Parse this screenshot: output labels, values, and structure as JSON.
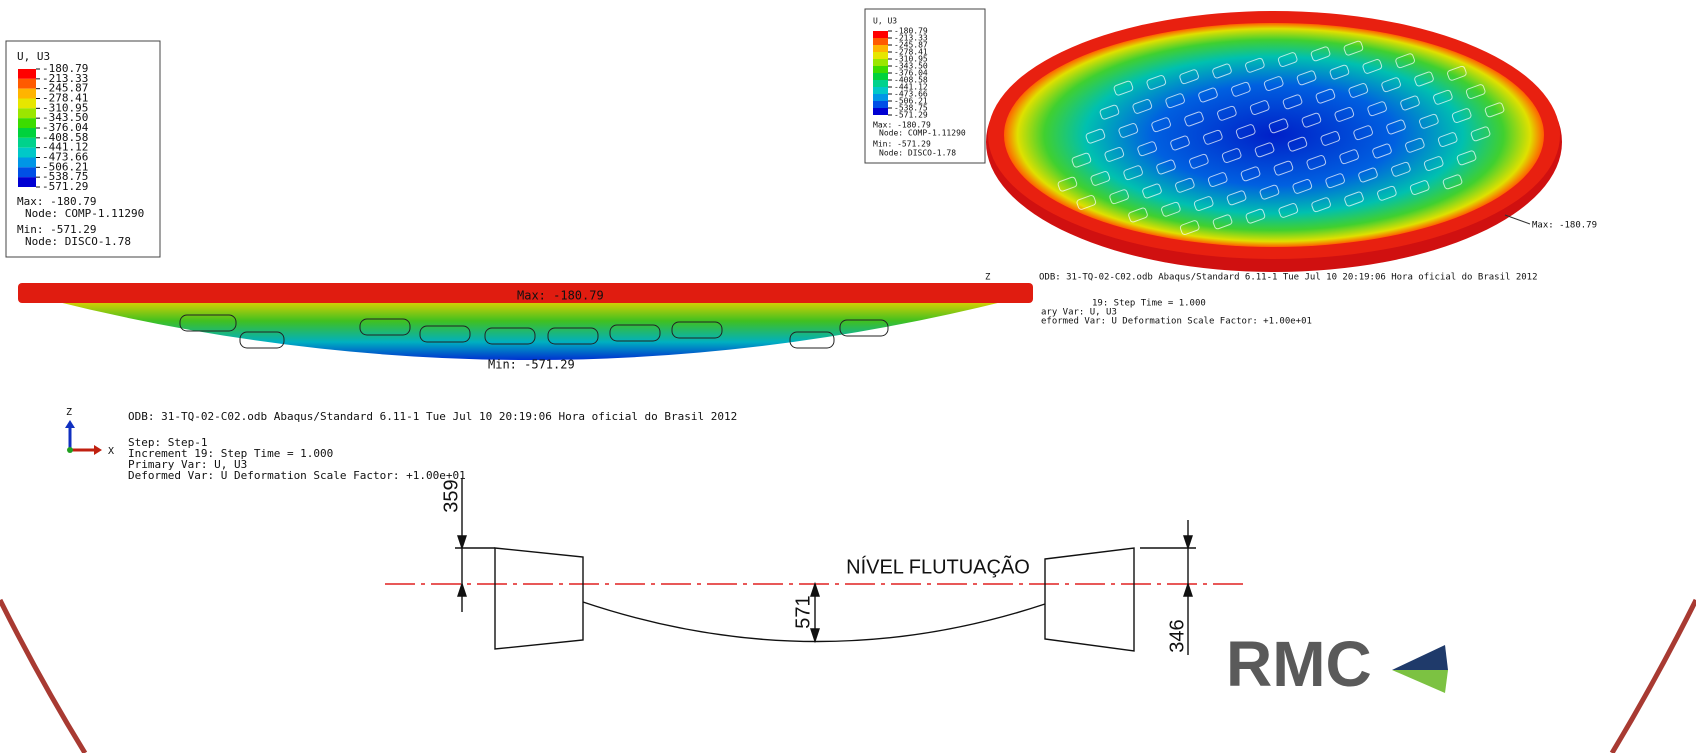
{
  "legend_left": {
    "title": "U, U3",
    "levels": [
      "-180.79",
      "-213.33",
      "-245.87",
      "-278.41",
      "-310.95",
      "-343.50",
      "-376.04",
      "-408.58",
      "-441.12",
      "-473.66",
      "-506.21",
      "-538.75",
      "-571.29"
    ],
    "max": "Max: -180.79",
    "max_node": "Node: COMP-1.11290",
    "min": "Min: -571.29",
    "min_node": "Node: DISCO-1.78"
  },
  "legend_right": {
    "title": "U, U3",
    "levels": [
      "-180.79",
      "-213.33",
      "-245.87",
      "-278.41",
      "-310.95",
      "-343.50",
      "-376.04",
      "-408.58",
      "-441.12",
      "-473.66",
      "-506.21",
      "-538.75",
      "-571.29"
    ],
    "max": "Max: -180.79",
    "max_node": "Node: COMP-1.11290",
    "min": "Min: -571.29",
    "min_node": "Node: DISCO-1.78"
  },
  "side_view": {
    "max_label": "Max: -180.79",
    "min_label": "Min: -571.29",
    "axis_z": "Z",
    "axis_x": "X",
    "odb": "ODB: 31-TQ-02-C02.odb    Abaqus/Standard 6.11-1    Tue Jul 10 20:19:06 Hora oficial do Brasil 2012",
    "step": "Step: Step-1",
    "increment": "Increment     19: Step Time =    1.000",
    "primary": "Primary Var: U, U3",
    "deformed": "Deformed Var: U   Deformation Scale Factor: +1.00e+01"
  },
  "top_view": {
    "max_label": "Max: -180.79",
    "axis_z": "Z",
    "odb": "ODB: 31-TQ-02-C02.odb    Abaqus/Standard 6.11-1    Tue Jul 10 20:19:06 Hora oficial do Brasil 2012",
    "increment": "19: Step Time =    1.000",
    "primary": "ary Var: U, U3",
    "deformed": "eformed Var: U   Deformation Scale Factor: +1.00e+01"
  },
  "diagram": {
    "dim_left": "359",
    "dim_center": "571",
    "dim_right": "346",
    "level_label": "NÍVEL FLUTUAÇÃO"
  },
  "logo": {
    "text": "RMC"
  }
}
